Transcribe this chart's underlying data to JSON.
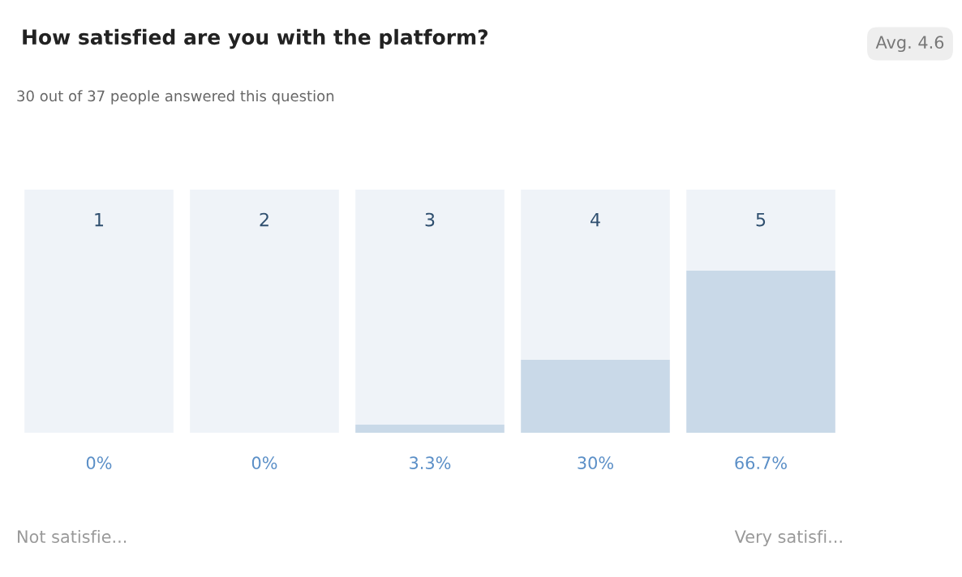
{
  "chart_data": {
    "type": "bar",
    "title": "How satisfied are you with the platform?",
    "subtitle": "30 out of 37 people answered this question",
    "categories": [
      "1",
      "2",
      "3",
      "4",
      "5"
    ],
    "stacked": true,
    "series": [
      {
        "color": "#c9d9e8",
        "values": [
          0,
          0,
          3.3,
          30,
          66.7
        ],
        "value_labels": [
          "0%",
          "0%",
          "3.3%",
          "30%",
          "66.7%"
        ]
      },
      {
        "color": "#eff3f8",
        "values": [
          100,
          100,
          96.7,
          70,
          33.3
        ]
      }
    ],
    "ylim": [
      0,
      100
    ],
    "annotations": [
      "Avg. 4.6",
      "Not satisfie...",
      "Very satisfi..."
    ]
  }
}
